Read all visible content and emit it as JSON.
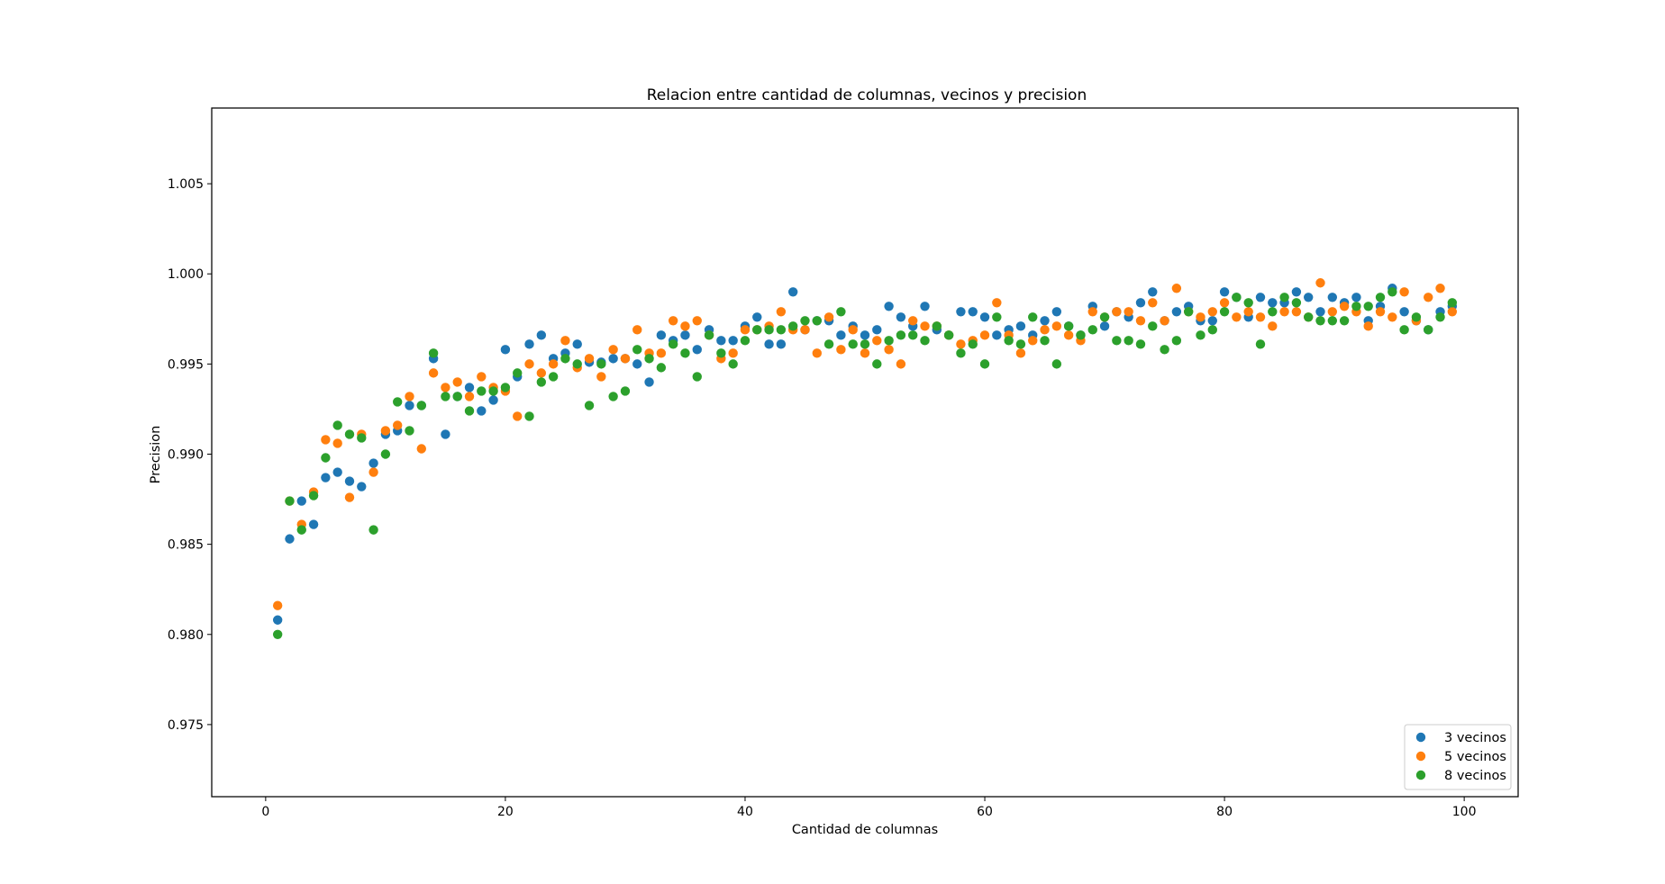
{
  "chart_data": {
    "type": "scatter",
    "title": "Relacion entre cantidad de columnas, vecinos y precision",
    "xlabel": "Cantidad de columnas",
    "ylabel": "Precision",
    "xlim": [
      -4.5,
      104.5
    ],
    "ylim": [
      0.971,
      1.0092
    ],
    "xticks": [
      0,
      20,
      40,
      60,
      80,
      100
    ],
    "yticks": [
      0.975,
      0.98,
      0.985,
      0.99,
      0.995,
      1.0,
      1.005
    ],
    "ytick_labels": [
      "0.975",
      "0.980",
      "0.985",
      "0.990",
      "0.995",
      "1.000",
      "1.005"
    ],
    "xtick_labels": [
      "0",
      "20",
      "40",
      "60",
      "80",
      "100"
    ],
    "grid": false,
    "legend_position": "bottom-right",
    "x": [
      1,
      2,
      3,
      4,
      5,
      6,
      7,
      8,
      9,
      10,
      11,
      12,
      13,
      14,
      15,
      16,
      17,
      18,
      19,
      20,
      21,
      22,
      23,
      24,
      25,
      26,
      27,
      28,
      29,
      30,
      31,
      32,
      33,
      34,
      35,
      36,
      37,
      38,
      39,
      40,
      41,
      42,
      43,
      44,
      45,
      46,
      47,
      48,
      49,
      50,
      51,
      52,
      53,
      54,
      55,
      56,
      57,
      58,
      59,
      60,
      61,
      62,
      63,
      64,
      65,
      66,
      67,
      68,
      69,
      70,
      71,
      72,
      73,
      74,
      75,
      76,
      77,
      78,
      79,
      80,
      81,
      82,
      83,
      84,
      85,
      86,
      87,
      88,
      89,
      90,
      91,
      92,
      93,
      94,
      95,
      96,
      97,
      98,
      99
    ],
    "series": [
      {
        "name": "3 vecinos",
        "color": "#1f77b4",
        "values": [
          0.9808,
          0.9853,
          0.9874,
          0.9861,
          0.9887,
          0.989,
          0.9885,
          0.9882,
          0.9895,
          0.9911,
          0.9913,
          0.9927,
          0.9927,
          0.9953,
          0.9911,
          0.9932,
          0.9937,
          0.9924,
          0.993,
          0.9958,
          0.9943,
          0.9961,
          0.9966,
          0.9953,
          0.9956,
          0.9961,
          0.9951,
          0.9951,
          0.9953,
          0.9953,
          0.995,
          0.994,
          0.9966,
          0.9963,
          0.9966,
          0.9958,
          0.9969,
          0.9963,
          0.9963,
          0.9971,
          0.9976,
          0.9961,
          0.9961,
          0.999,
          0.9969,
          0.9974,
          0.9974,
          0.9966,
          0.9971,
          0.9966,
          0.9969,
          0.9982,
          0.9976,
          0.9971,
          0.9982,
          0.9969,
          0.9966,
          0.9979,
          0.9979,
          0.9976,
          0.9966,
          0.9969,
          0.9971,
          0.9966,
          0.9974,
          0.9979,
          0.9971,
          0.9966,
          0.9982,
          0.9971,
          0.9979,
          0.9976,
          0.9984,
          0.999,
          0.9974,
          0.9979,
          0.9982,
          0.9974,
          0.9974,
          0.999,
          0.9987,
          0.9976,
          0.9987,
          0.9984,
          0.9984,
          0.999,
          0.9987,
          0.9979,
          0.9987,
          0.9984,
          0.9987,
          0.9974,
          0.9982,
          0.9992,
          0.9979,
          0.9974,
          0.9969,
          0.9979,
          0.9982
        ]
      },
      {
        "name": "5 vecinos",
        "color": "#ff7f0e",
        "values": [
          0.9816,
          0.9874,
          0.9861,
          0.9879,
          0.9908,
          0.9906,
          0.9876,
          0.9911,
          0.989,
          0.9913,
          0.9916,
          0.9932,
          0.9903,
          0.9945,
          0.9937,
          0.994,
          0.9932,
          0.9943,
          0.9937,
          0.9935,
          0.9921,
          0.995,
          0.9945,
          0.995,
          0.9963,
          0.9948,
          0.9953,
          0.9943,
          0.9958,
          0.9953,
          0.9969,
          0.9956,
          0.9956,
          0.9974,
          0.9971,
          0.9974,
          0.9966,
          0.9953,
          0.9956,
          0.9969,
          0.9969,
          0.9971,
          0.9979,
          0.9969,
          0.9969,
          0.9956,
          0.9976,
          0.9958,
          0.9969,
          0.9956,
          0.9963,
          0.9958,
          0.995,
          0.9974,
          0.9971,
          0.9971,
          0.9966,
          0.9961,
          0.9963,
          0.9966,
          0.9984,
          0.9966,
          0.9956,
          0.9963,
          0.9969,
          0.9971,
          0.9966,
          0.9963,
          0.9979,
          0.9976,
          0.9979,
          0.9979,
          0.9974,
          0.9984,
          0.9974,
          0.9992,
          0.9979,
          0.9976,
          0.9979,
          0.9984,
          0.9976,
          0.9979,
          0.9976,
          0.9971,
          0.9979,
          0.9979,
          0.9976,
          0.9995,
          0.9979,
          0.9982,
          0.9979,
          0.9971,
          0.9979,
          0.9976,
          0.999,
          0.9974,
          0.9987,
          0.9992,
          0.9979
        ]
      },
      {
        "name": "8 vecinos",
        "color": "#2ca02c",
        "values": [
          0.98,
          0.9874,
          0.9858,
          0.9877,
          0.9898,
          0.9916,
          0.9911,
          0.9909,
          0.9858,
          0.99,
          0.9929,
          0.9913,
          0.9927,
          0.9956,
          0.9932,
          0.9932,
          0.9924,
          0.9935,
          0.9935,
          0.9937,
          0.9945,
          0.9921,
          0.994,
          0.9943,
          0.9953,
          0.995,
          0.9927,
          0.995,
          0.9932,
          0.9935,
          0.9958,
          0.9953,
          0.9948,
          0.9961,
          0.9956,
          0.9943,
          0.9966,
          0.9956,
          0.995,
          0.9963,
          0.9969,
          0.9969,
          0.9969,
          0.9971,
          0.9974,
          0.9974,
          0.9961,
          0.9979,
          0.9961,
          0.9961,
          0.995,
          0.9963,
          0.9966,
          0.9966,
          0.9963,
          0.9971,
          0.9966,
          0.9956,
          0.9961,
          0.995,
          0.9976,
          0.9963,
          0.9961,
          0.9976,
          0.9963,
          0.995,
          0.9971,
          0.9966,
          0.9969,
          0.9976,
          0.9963,
          0.9963,
          0.9961,
          0.9971,
          0.9958,
          0.9963,
          0.9979,
          0.9966,
          0.9969,
          0.9979,
          0.9987,
          0.9984,
          0.9961,
          0.9979,
          0.9987,
          0.9984,
          0.9976,
          0.9974,
          0.9974,
          0.9974,
          0.9982,
          0.9982,
          0.9987,
          0.999,
          0.9969,
          0.9976,
          0.9969,
          0.9976,
          0.9984
        ]
      }
    ]
  }
}
